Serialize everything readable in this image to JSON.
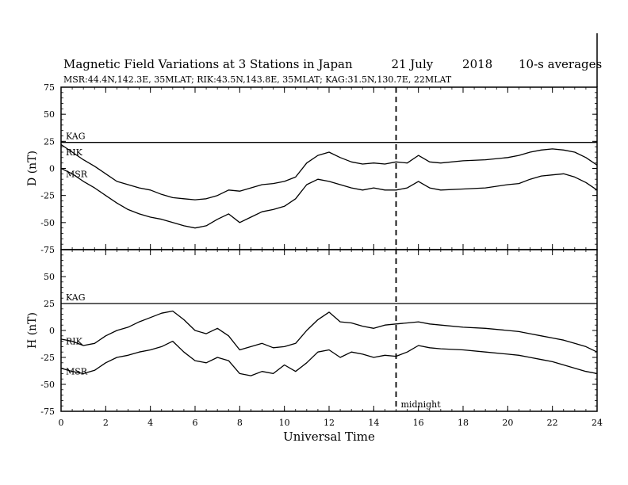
{
  "chart_data": {
    "type": "line",
    "title": {
      "main": "Magnetic Field Variations at 3 Stations in Japan",
      "date": "21 July",
      "year": "2018",
      "averaging": "10-s averages"
    },
    "subtitle": "MSR:44.4N,142.3E, 35MLAT;  RIK:43.5N,143.8E, 35MLAT;  KAG:31.5N,130.7E, 22MLAT",
    "xlabel": "Universal Time",
    "xlim": [
      0,
      24
    ],
    "x_ticks": [
      "0",
      "2",
      "4",
      "6",
      "8",
      "10",
      "12",
      "14",
      "16",
      "18",
      "20",
      "22",
      "24"
    ],
    "y_ticks": [
      "75",
      "50",
      "25",
      "0",
      "-25",
      "-50",
      "-75"
    ],
    "grid": false,
    "marker": {
      "x": 15,
      "label": "midnight"
    },
    "panels": [
      {
        "ylabel": "D (nT)",
        "ylim": [
          -75,
          75
        ],
        "series": [
          {
            "name": "KAG",
            "x": [
              0,
              24
            ],
            "y": [
              24,
              24
            ]
          },
          {
            "name": "RIK",
            "x": [
              0,
              0.5,
              1,
              1.5,
              2,
              2.5,
              3,
              3.5,
              4,
              4.5,
              5,
              5.5,
              6,
              6.5,
              7,
              7.5,
              8,
              8.5,
              9,
              9.5,
              10,
              10.5,
              11,
              11.5,
              12,
              12.5,
              13,
              13.5,
              14,
              14.5,
              15,
              15.5,
              16,
              16.5,
              17,
              18,
              19,
              20,
              20.5,
              21,
              21.5,
              22,
              22.5,
              23,
              23.5,
              24
            ],
            "y": [
              22,
              15,
              8,
              2,
              -5,
              -12,
              -15,
              -18,
              -20,
              -24,
              -27,
              -28,
              -29,
              -28,
              -25,
              -20,
              -21,
              -18,
              -15,
              -14,
              -12,
              -8,
              5,
              12,
              15,
              10,
              6,
              4,
              5,
              4,
              6,
              5,
              12,
              6,
              5,
              7,
              8,
              10,
              12,
              15,
              17,
              18,
              17,
              15,
              10,
              3
            ]
          },
          {
            "name": "MSR",
            "x": [
              0,
              0.5,
              1,
              1.5,
              2,
              2.5,
              3,
              3.5,
              4,
              4.5,
              5,
              5.5,
              6,
              6.5,
              7,
              7.5,
              8,
              8.5,
              9,
              9.5,
              10,
              10.5,
              11,
              11.5,
              12,
              12.5,
              13,
              13.5,
              14,
              14.5,
              15,
              15.5,
              16,
              16.5,
              17,
              18,
              19,
              20,
              20.5,
              21,
              21.5,
              22,
              22.5,
              23,
              23.5,
              24
            ],
            "y": [
              0,
              -5,
              -12,
              -18,
              -25,
              -32,
              -38,
              -42,
              -45,
              -47,
              -50,
              -53,
              -55,
              -53,
              -47,
              -42,
              -50,
              -45,
              -40,
              -38,
              -35,
              -28,
              -15,
              -10,
              -12,
              -15,
              -18,
              -20,
              -18,
              -20,
              -20,
              -18,
              -12,
              -18,
              -20,
              -19,
              -18,
              -15,
              -14,
              -10,
              -7,
              -6,
              -5,
              -8,
              -13,
              -20
            ]
          }
        ]
      },
      {
        "ylabel": "H (nT)",
        "ylim": [
          -75,
          75
        ],
        "series": [
          {
            "name": "KAG",
            "x": [
              0,
              24
            ],
            "y": [
              25,
              25
            ]
          },
          {
            "name": "RIK",
            "x": [
              0,
              0.5,
              1,
              1.5,
              2,
              2.5,
              3,
              3.5,
              4,
              4.5,
              5,
              5.5,
              6,
              6.5,
              7,
              7.5,
              8,
              8.5,
              9,
              9.5,
              10,
              10.5,
              11,
              11.5,
              12,
              12.5,
              13,
              13.5,
              14,
              14.5,
              15,
              15.5,
              16,
              16.5,
              17,
              18,
              19,
              20,
              20.5,
              21,
              21.5,
              22,
              22.5,
              23,
              23.5,
              24
            ],
            "y": [
              -8,
              -10,
              -14,
              -12,
              -5,
              0,
              3,
              8,
              12,
              16,
              18,
              10,
              0,
              -3,
              2,
              -5,
              -18,
              -15,
              -12,
              -16,
              -15,
              -12,
              0,
              10,
              17,
              8,
              7,
              4,
              2,
              5,
              6,
              7,
              8,
              6,
              5,
              3,
              2,
              0,
              -1,
              -3,
              -5,
              -7,
              -9,
              -12,
              -15,
              -20
            ]
          },
          {
            "name": "MSR",
            "x": [
              0,
              0.5,
              1,
              1.5,
              2,
              2.5,
              3,
              3.5,
              4,
              4.5,
              5,
              5.5,
              6,
              6.5,
              7,
              7.5,
              8,
              8.5,
              9,
              9.5,
              10,
              10.5,
              11,
              11.5,
              12,
              12.5,
              13,
              13.5,
              14,
              14.5,
              15,
              15.5,
              16,
              16.5,
              17,
              18,
              19,
              20,
              20.5,
              21,
              21.5,
              22,
              22.5,
              23,
              23.5,
              24
            ],
            "y": [
              -35,
              -38,
              -40,
              -37,
              -30,
              -25,
              -23,
              -20,
              -18,
              -15,
              -10,
              -20,
              -28,
              -30,
              -25,
              -28,
              -40,
              -42,
              -38,
              -40,
              -32,
              -38,
              -30,
              -20,
              -18,
              -25,
              -20,
              -22,
              -25,
              -23,
              -24,
              -20,
              -14,
              -16,
              -17,
              -18,
              -20,
              -22,
              -23,
              -25,
              -27,
              -29,
              -32,
              -35,
              -38,
              -40
            ]
          }
        ]
      }
    ]
  }
}
